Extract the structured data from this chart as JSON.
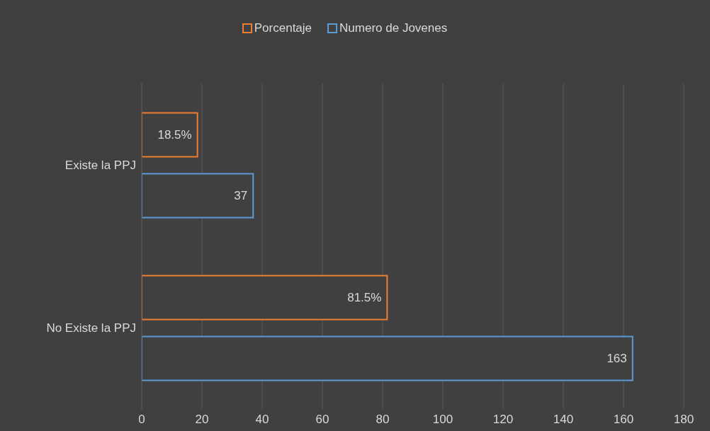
{
  "chart_data": {
    "type": "bar",
    "orientation": "horizontal",
    "categories": [
      "Existe la PPJ",
      "No Existe la PPJ"
    ],
    "series": [
      {
        "name": "Porcentaje",
        "color": "#ed7d31",
        "values": [
          18.5,
          81.5
        ],
        "value_labels": [
          "18.5%",
          "81.5%"
        ]
      },
      {
        "name": "Numero de Jovenes",
        "color": "#5b9bd5",
        "values": [
          37,
          163
        ],
        "value_labels": [
          "37",
          "163"
        ]
      }
    ],
    "xlim": [
      0,
      180
    ],
    "xticks": [
      0,
      20,
      40,
      60,
      80,
      100,
      120,
      140,
      160,
      180
    ],
    "grid": "x",
    "legend": "top"
  }
}
